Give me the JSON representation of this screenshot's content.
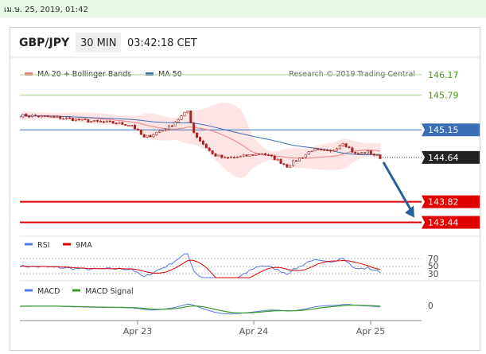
{
  "date_bar": "เม.ษ. 25, 2019, 01:42",
  "header": {
    "pair": "GBP/JPY",
    "timeframe": "30 MIN",
    "time": "03:42:18 CET"
  },
  "legend": {
    "ma20": "MA 20 + Bollinger Bands",
    "ma50": "MA 50",
    "research": "Research © 2019 Trading Central"
  },
  "colors": {
    "band": "#fde0e0",
    "ma20": "#f08080",
    "ma50": "#3b6fb5",
    "resistance": "#a8d08d",
    "support": "#e00000",
    "pivot": "#3b6fb5",
    "arrow": "#2b5f9e",
    "candle": "#a02525",
    "rsi": "#5577dd",
    "rsi_ma": "#e00000",
    "macd": "#5577dd",
    "macd_signal": "#3a9a2a"
  },
  "chart_data": {
    "type": "candlestick",
    "title": "GBP/JPY",
    "x_ticks": [
      "Apr 23",
      "Apr 24",
      "Apr 25"
    ],
    "ylim": [
      143.3,
      146.3
    ],
    "levels": [
      {
        "label": "146.17",
        "value": 146.17,
        "kind": "resistance"
      },
      {
        "label": "145.79",
        "value": 145.79,
        "kind": "resistance"
      },
      {
        "label": "145.15",
        "value": 145.15,
        "kind": "pivot"
      },
      {
        "label": "144.64",
        "value": 144.64,
        "kind": "last"
      },
      {
        "label": "143.82",
        "value": 143.82,
        "kind": "support"
      },
      {
        "label": "143.44",
        "value": 143.44,
        "kind": "support"
      }
    ],
    "price_path": [
      [
        0,
        145.42
      ],
      [
        6,
        145.4
      ],
      [
        12,
        145.38
      ],
      [
        18,
        145.34
      ],
      [
        24,
        145.3
      ],
      [
        30,
        145.28
      ],
      [
        36,
        145.24
      ],
      [
        40,
        145.0
      ],
      [
        44,
        145.1
      ],
      [
        48,
        145.2
      ],
      [
        52,
        145.4
      ],
      [
        54,
        145.5
      ],
      [
        56,
        145.1
      ],
      [
        58,
        144.95
      ],
      [
        62,
        144.7
      ],
      [
        66,
        144.62
      ],
      [
        72,
        144.66
      ],
      [
        78,
        144.72
      ],
      [
        82,
        144.62
      ],
      [
        86,
        144.48
      ],
      [
        90,
        144.62
      ],
      [
        94,
        144.78
      ],
      [
        100,
        144.74
      ],
      [
        104,
        144.92
      ],
      [
        108,
        144.7
      ],
      [
        112,
        144.74
      ],
      [
        116,
        144.64
      ]
    ],
    "projection": {
      "from": 144.64,
      "to": 143.44
    },
    "indicators": {
      "rsi": {
        "legend": [
          "RSI",
          "9MA"
        ],
        "levels": [
          "70",
          "50",
          "30"
        ]
      },
      "macd": {
        "legend": [
          "MACD",
          "MACD Signal"
        ],
        "levels": [
          "0"
        ]
      }
    }
  }
}
